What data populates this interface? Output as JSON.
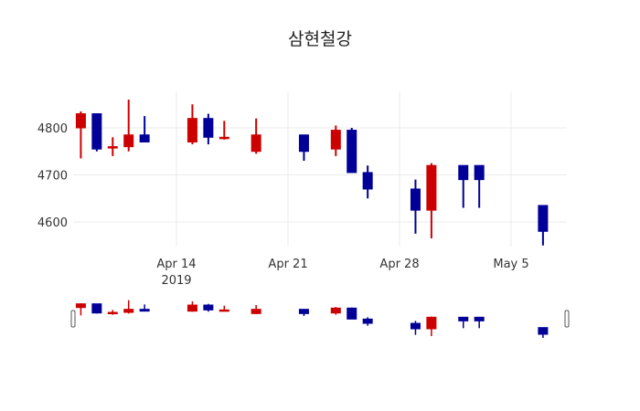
{
  "title": "삼현철강",
  "colors": {
    "increasing": "#cc0000",
    "decreasing": "#000099",
    "grid": "#ebebeb"
  },
  "chart_data": {
    "type": "candlestick",
    "title": "삼현철강",
    "xlabel": "",
    "ylabel": "",
    "ylim": [
      4515,
      4885
    ],
    "yticks": [
      4600,
      4700,
      4800
    ],
    "xticks": [
      {
        "label": "Apr 14",
        "sublabel": "2019",
        "date": "2019-04-14"
      },
      {
        "label": "Apr 21",
        "sublabel": "",
        "date": "2019-04-21"
      },
      {
        "label": "Apr 28",
        "sublabel": "",
        "date": "2019-04-28"
      },
      {
        "label": "May 5",
        "sublabel": "",
        "date": "2019-05-05"
      }
    ],
    "grid": true,
    "rangeslider": true,
    "data": [
      {
        "date": "2019-04-08",
        "open": 4800,
        "high": 4835,
        "low": 4735,
        "close": 4830
      },
      {
        "date": "2019-04-09",
        "open": 4830,
        "high": 4830,
        "low": 4750,
        "close": 4755
      },
      {
        "date": "2019-04-10",
        "open": 4760,
        "high": 4780,
        "low": 4740,
        "close": 4760
      },
      {
        "date": "2019-04-11",
        "open": 4760,
        "high": 4860,
        "low": 4750,
        "close": 4785
      },
      {
        "date": "2019-04-12",
        "open": 4785,
        "high": 4825,
        "low": 4770,
        "close": 4770
      },
      {
        "date": "2019-04-15",
        "open": 4770,
        "high": 4850,
        "low": 4765,
        "close": 4820
      },
      {
        "date": "2019-04-16",
        "open": 4820,
        "high": 4830,
        "low": 4765,
        "close": 4780
      },
      {
        "date": "2019-04-17",
        "open": 4780,
        "high": 4815,
        "low": 4775,
        "close": 4780
      },
      {
        "date": "2019-04-19",
        "open": 4750,
        "high": 4820,
        "low": 4745,
        "close": 4785
      },
      {
        "date": "2019-04-22",
        "open": 4785,
        "high": 4785,
        "low": 4730,
        "close": 4750
      },
      {
        "date": "2019-04-24",
        "open": 4755,
        "high": 4805,
        "low": 4740,
        "close": 4795
      },
      {
        "date": "2019-04-25",
        "open": 4795,
        "high": 4800,
        "low": 4705,
        "close": 4705
      },
      {
        "date": "2019-04-26",
        "open": 4705,
        "high": 4720,
        "low": 4650,
        "close": 4670
      },
      {
        "date": "2019-04-29",
        "open": 4670,
        "high": 4690,
        "low": 4575,
        "close": 4625
      },
      {
        "date": "2019-04-30",
        "open": 4625,
        "high": 4725,
        "low": 4565,
        "close": 4720
      },
      {
        "date": "2019-05-02",
        "open": 4720,
        "high": 4720,
        "low": 4630,
        "close": 4690
      },
      {
        "date": "2019-05-03",
        "open": 4720,
        "high": 4720,
        "low": 4630,
        "close": 4690
      },
      {
        "date": "2019-05-07",
        "open": 4635,
        "high": 4635,
        "low": 4550,
        "close": 4580
      }
    ]
  }
}
